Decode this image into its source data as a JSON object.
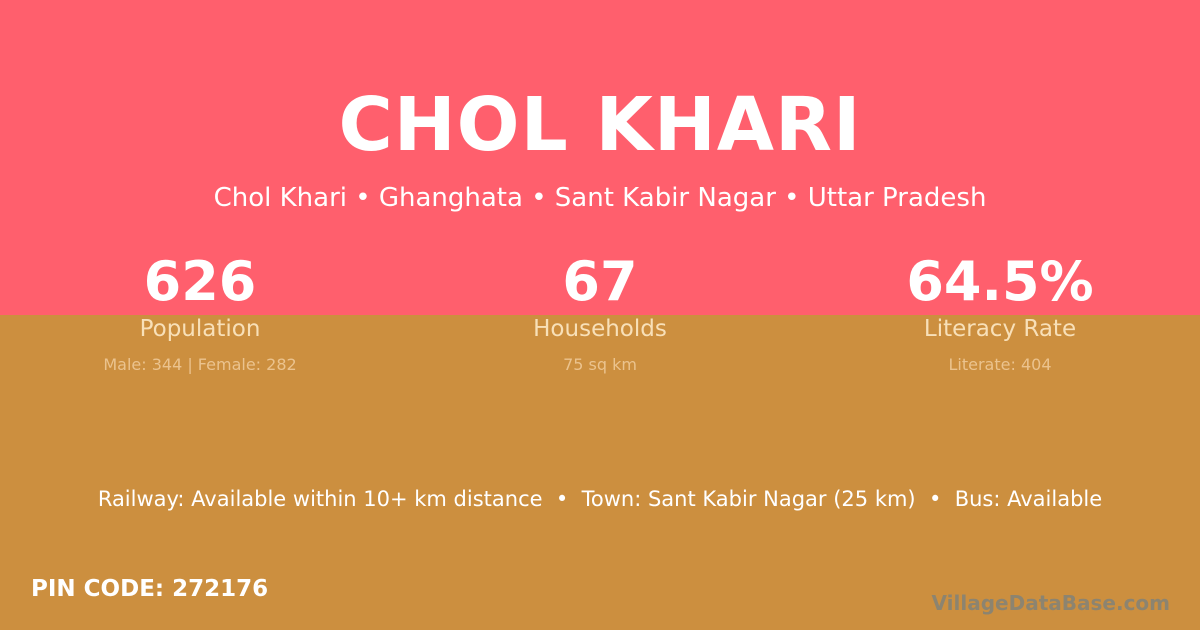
{
  "colors": {
    "top_band": "#FF5F6D",
    "bottom_band": "#CC8F3F"
  },
  "title": "CHOL KHARI",
  "subtitle": "Chol Khari • Ghanghata • Sant Kabir Nagar • Uttar Pradesh",
  "stats": [
    {
      "value": "626",
      "label": "Population",
      "sub": "Male: 344 | Female: 282"
    },
    {
      "value": "67",
      "label": "Households",
      "sub": "75 sq km"
    },
    {
      "value": "64.5%",
      "label": "Literacy Rate",
      "sub": "Literate: 404"
    }
  ],
  "facilities": "Railway: Available within 10+ km distance  •  Town: Sant Kabir Nagar (25 km)  •  Bus: Available",
  "pin_code": "PIN CODE: 272176",
  "watermark": "VillageDataBase.com"
}
